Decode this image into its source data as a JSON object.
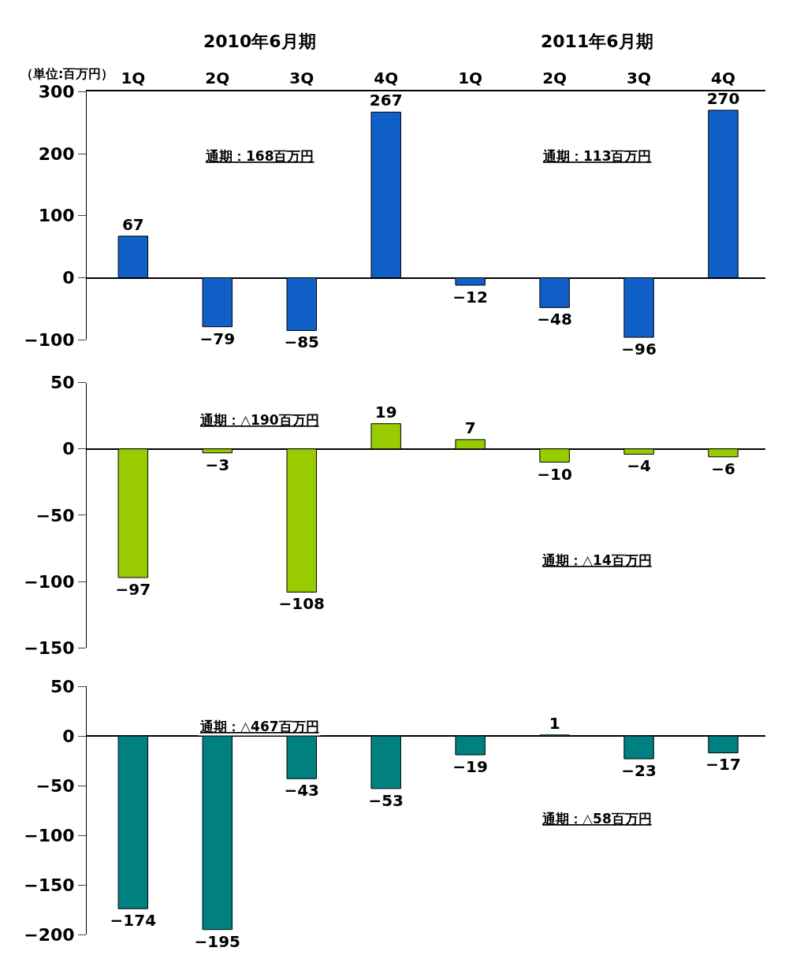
{
  "chart_data": [
    {
      "type": "bar",
      "categories": [
        "1Q",
        "2Q",
        "3Q",
        "4Q",
        "1Q",
        "2Q",
        "3Q",
        "4Q"
      ],
      "values": [
        67,
        -79,
        -85,
        267,
        -12,
        -48,
        -96,
        270
      ],
      "color": "#1060c8",
      "data_labels": true,
      "ylim": [
        -100,
        300
      ],
      "yticks": [
        -100,
        0,
        100,
        200,
        300
      ],
      "annotations": [
        "（単位:百万円）",
        "2010年6月期",
        "2011年6月期",
        "通期：168百万円",
        "通期：113百万円"
      ]
    },
    {
      "type": "bar",
      "categories": [
        null,
        null,
        null,
        null,
        null,
        null,
        null,
        null
      ],
      "values": [
        -97,
        -3,
        -108,
        19,
        7,
        -10,
        -4,
        -6
      ],
      "color": "#99cc00",
      "data_labels": true,
      "ylim": [
        -150,
        50
      ],
      "yticks": [
        -150,
        -100,
        -50,
        0,
        50
      ],
      "annotations": [
        "通期：△190百万円",
        "通期：△14百万円"
      ]
    },
    {
      "type": "bar",
      "categories": [
        null,
        null,
        null,
        null,
        null,
        null,
        null,
        null
      ],
      "values": [
        -174,
        -195,
        -43,
        -53,
        -19,
        1,
        -23,
        -17
      ],
      "color": "#008080",
      "data_labels": true,
      "ylim": [
        -200,
        50
      ],
      "yticks": [
        -200,
        -150,
        -100,
        -50,
        0,
        50
      ],
      "annotations": [
        "通期：△467百万円",
        "通期：△58百万円"
      ]
    }
  ]
}
